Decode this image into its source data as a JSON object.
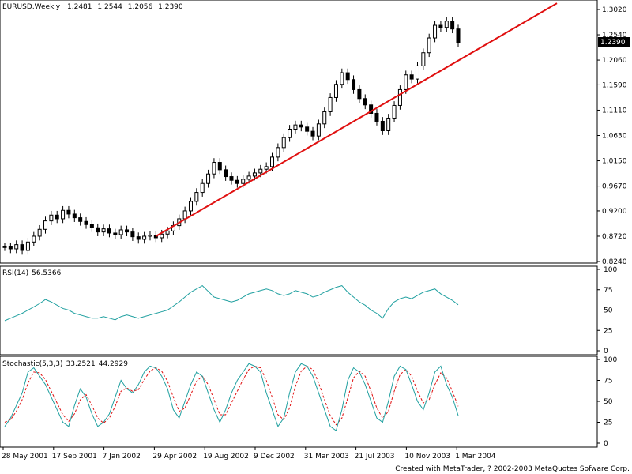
{
  "window": {
    "symbol": "EURUSD",
    "timeframe": "Weekly",
    "open": "1.2481",
    "high": "1.2544",
    "low": "1.2056",
    "close": "1.2390"
  },
  "footer": {
    "credit": "Created with MetaTrader, ? 2002-2003 MetaQuotes Sofware Corp."
  },
  "colors": {
    "candle": "#000000",
    "trendline": "#e01010",
    "rsi": "#20a0a0",
    "stoch_main": "#20a0a0",
    "stoch_signal": "#e01010",
    "grid": "#000000"
  },
  "chart_data": [
    {
      "type": "candlestick",
      "title": "EURUSD,Weekly",
      "price_label": "1.2390",
      "y_ticks": [
        "1.3020",
        "1.2540",
        "1.2060",
        "1.1590",
        "1.1110",
        "1.0630",
        "1.0150",
        "0.9670",
        "0.9200",
        "0.8720",
        "0.8240"
      ],
      "ylim": [
        0.824,
        1.302
      ],
      "x_ticks": [
        "28 May 2001",
        "17 Sep 2001",
        "7 Jan 2002",
        "29 Apr 2002",
        "19 Aug 2002",
        "9 Dec 2002",
        "31 Mar 2003",
        "21 Jul 2003",
        "10 Nov 2003",
        "1 Mar 2004"
      ],
      "close_series": [
        0.852,
        0.848,
        0.856,
        0.845,
        0.861,
        0.872,
        0.885,
        0.901,
        0.912,
        0.905,
        0.921,
        0.914,
        0.907,
        0.9,
        0.894,
        0.888,
        0.88,
        0.886,
        0.878,
        0.875,
        0.884,
        0.88,
        0.871,
        0.866,
        0.872,
        0.874,
        0.869,
        0.876,
        0.882,
        0.892,
        0.905,
        0.92,
        0.938,
        0.955,
        0.972,
        0.99,
        1.012,
        0.998,
        0.985,
        0.978,
        0.972,
        0.98,
        0.986,
        0.992,
        0.999,
        1.004,
        1.022,
        1.04,
        1.059,
        1.075,
        1.083,
        1.079,
        1.071,
        1.062,
        1.085,
        1.108,
        1.135,
        1.16,
        1.182,
        1.169,
        1.15,
        1.133,
        1.121,
        1.105,
        1.09,
        1.072,
        1.096,
        1.12,
        1.15,
        1.178,
        1.17,
        1.195,
        1.22,
        1.248,
        1.272,
        1.268,
        1.28,
        1.265,
        1.239
      ],
      "trendline": {
        "from": {
          "x": "7 Jan 2002",
          "y": 0.872
        },
        "to": {
          "x": "1 Mar 2004",
          "y": 1.205
        }
      },
      "last_close": 1.239
    },
    {
      "type": "line",
      "title": "RSI(14)",
      "value_label": "56.5366",
      "y_ticks": [
        "100",
        "75",
        "50",
        "25",
        "0"
      ],
      "ylim": [
        0,
        100
      ],
      "series": [
        {
          "values": [
            37,
            40,
            43,
            46,
            50,
            54,
            58,
            63,
            60,
            56,
            52,
            50,
            46,
            44,
            42,
            40,
            40,
            42,
            40,
            38,
            42,
            44,
            42,
            40,
            42,
            44,
            46,
            48,
            50,
            55,
            60,
            66,
            72,
            76,
            80,
            73,
            66,
            64,
            62,
            60,
            62,
            66,
            70,
            72,
            74,
            76,
            74,
            70,
            68,
            70,
            74,
            72,
            70,
            66,
            68,
            72,
            75,
            78,
            80,
            72,
            66,
            60,
            56,
            50,
            46,
            40,
            52,
            60,
            64,
            66,
            64,
            68,
            72,
            74,
            76,
            70,
            66,
            62,
            56.5
          ]
        }
      ]
    },
    {
      "type": "line",
      "title": "Stochastic(5,3,3)",
      "value_label": "33.2521",
      "value_label_2": "44.2929",
      "y_ticks": [
        "100",
        "75",
        "50",
        "25",
        "0"
      ],
      "ylim": [
        0,
        100
      ],
      "series": [
        {
          "values": [
            20,
            30,
            45,
            60,
            85,
            90,
            80,
            70,
            55,
            40,
            25,
            20,
            45,
            65,
            55,
            35,
            20,
            25,
            35,
            55,
            75,
            65,
            60,
            70,
            85,
            92,
            90,
            80,
            65,
            40,
            30,
            50,
            70,
            85,
            80,
            60,
            40,
            25,
            40,
            60,
            75,
            85,
            95,
            92,
            85,
            60,
            40,
            20,
            30,
            60,
            85,
            95,
            92,
            80,
            60,
            40,
            20,
            15,
            40,
            75,
            90,
            85,
            70,
            50,
            30,
            25,
            50,
            80,
            92,
            88,
            70,
            50,
            40,
            60,
            85,
            92,
            70,
            55,
            33
          ]
        },
        {
          "values": [
            25,
            28,
            38,
            52,
            72,
            85,
            84,
            76,
            62,
            48,
            34,
            26,
            35,
            52,
            58,
            45,
            30,
            24,
            30,
            44,
            62,
            66,
            62,
            64,
            76,
            86,
            90,
            86,
            74,
            55,
            38,
            42,
            58,
            74,
            80,
            70,
            52,
            34,
            34,
            48,
            62,
            76,
            88,
            92,
            90,
            75,
            55,
            34,
            28,
            42,
            68,
            86,
            92,
            88,
            72,
            52,
            33,
            22,
            30,
            54,
            78,
            86,
            80,
            62,
            42,
            30,
            38,
            62,
            82,
            88,
            80,
            62,
            48,
            52,
            70,
            84,
            78,
            62,
            44
          ]
        }
      ]
    }
  ]
}
